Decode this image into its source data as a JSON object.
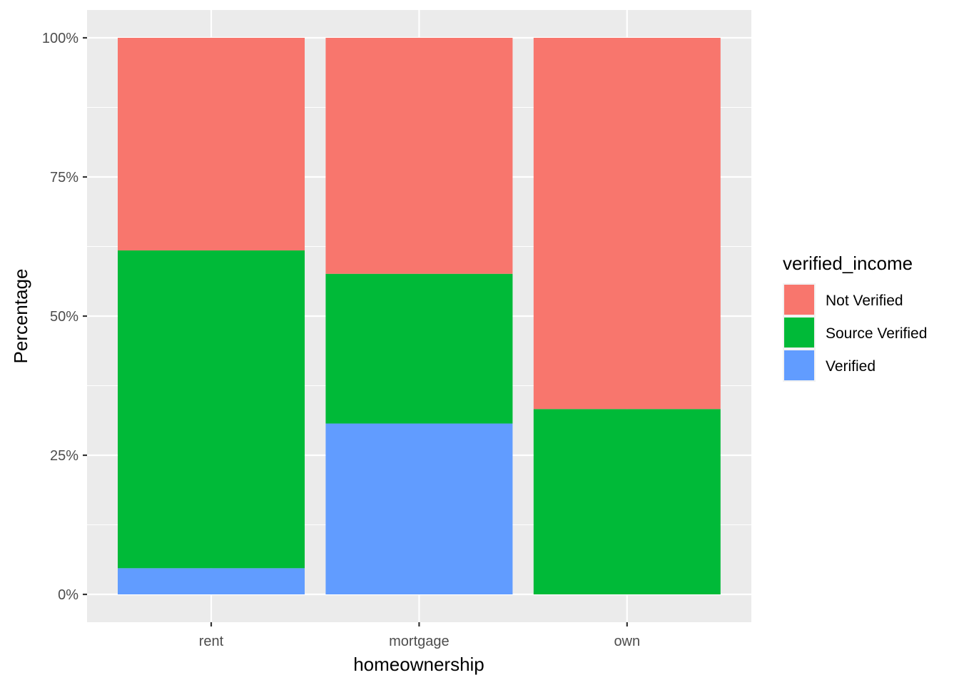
{
  "chart_data": {
    "type": "bar",
    "stacked": true,
    "position": "fill",
    "categories": [
      "rent",
      "mortgage",
      "own"
    ],
    "series": [
      {
        "name": "Not Verified",
        "color": "#F8766D",
        "values": [
          0.382,
          0.424,
          0.667
        ]
      },
      {
        "name": "Source Verified",
        "color": "#00BA38",
        "values": [
          0.571,
          0.269,
          0.333
        ]
      },
      {
        "name": "Verified",
        "color": "#619CFF",
        "values": [
          0.047,
          0.307,
          0.0
        ]
      }
    ],
    "stack_order_bottom_to_top": [
      "Verified",
      "Source Verified",
      "Not Verified"
    ],
    "xlabel": "homeownership",
    "ylabel": "Percentage",
    "ylim": [
      0,
      1
    ],
    "yticks": [
      0,
      0.25,
      0.5,
      0.75,
      1
    ],
    "ytick_labels": [
      "0%",
      "25%",
      "50%",
      "75%",
      "100%"
    ],
    "legend": {
      "title": "verified_income",
      "placement": "right"
    },
    "grid": true,
    "panel_background": "#EBEBEB",
    "grid_color": "#FFFFFF"
  }
}
